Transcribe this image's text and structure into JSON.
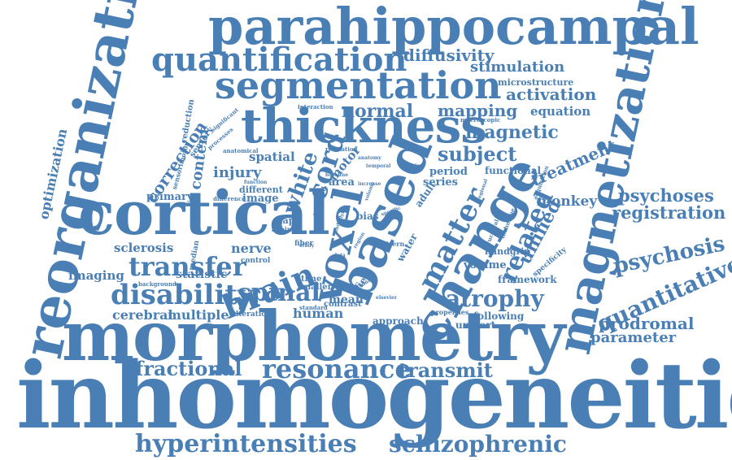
{
  "color": "#4a7fb5",
  "words": [
    {
      "key": "inhomogeneities",
      "text": "inhomogeneities"
    },
    {
      "key": "morphometry",
      "text": "morphometry"
    },
    {
      "key": "cortical",
      "text": "cortical"
    },
    {
      "key": "reorganization",
      "text": "reorganization"
    },
    {
      "key": "parahippocampal",
      "text": "parahippocampal"
    },
    {
      "key": "magnetization",
      "text": "magnetization"
    },
    {
      "key": "thickness",
      "text": "thickness"
    },
    {
      "key": "based",
      "text": "based"
    },
    {
      "key": "change",
      "text": "change"
    },
    {
      "key": "segmentation",
      "text": "segmentation"
    },
    {
      "key": "quantification",
      "text": "quantification"
    },
    {
      "key": "hyperintensities",
      "text": "hyperintensities"
    },
    {
      "key": "schizophrenic",
      "text": "schizophrenic"
    },
    {
      "key": "resonance",
      "text": "resonance"
    },
    {
      "key": "transmit",
      "text": "transmit"
    },
    {
      "key": "fractional",
      "text": "fractional"
    },
    {
      "key": "disability",
      "text": "disability"
    },
    {
      "key": "spinal",
      "text": "spinal"
    },
    {
      "key": "transfer",
      "text": "transfer"
    },
    {
      "key": "brain",
      "text": "brain"
    },
    {
      "key": "atrophy",
      "text": "atrophy"
    },
    {
      "key": "quantitative",
      "text": "quantitative"
    },
    {
      "key": "psychosis",
      "text": "psychosis"
    },
    {
      "key": "psychoses",
      "text": "psychoses"
    },
    {
      "key": "registration",
      "text": "registration"
    },
    {
      "key": "prodromal",
      "text": "prodromal"
    },
    {
      "key": "parameter",
      "text": "parameter"
    },
    {
      "key": "voxel",
      "text": "voxel"
    },
    {
      "key": "matter",
      "text": "matter"
    },
    {
      "key": "related",
      "text": "related"
    },
    {
      "key": "unified",
      "text": "unified"
    },
    {
      "key": "cord",
      "text": "cord"
    },
    {
      "key": "white",
      "text": "white"
    },
    {
      "key": "subject",
      "text": "subject"
    },
    {
      "key": "magnetic",
      "text": "magnetic"
    },
    {
      "key": "normal",
      "text": "normal"
    },
    {
      "key": "mapping",
      "text": "mapping"
    },
    {
      "key": "activation",
      "text": "activation"
    },
    {
      "key": "stimulation",
      "text": "stimulation"
    },
    {
      "key": "diffusivity",
      "text": "diffusivity"
    },
    {
      "key": "microstructure",
      "text": "microstructure"
    },
    {
      "key": "equation",
      "text": "equation"
    },
    {
      "key": "treatment",
      "text": "treatment"
    },
    {
      "key": "monkey",
      "text": "monkey"
    },
    {
      "key": "functional",
      "text": "functional"
    },
    {
      "key": "period",
      "text": "period"
    },
    {
      "key": "series",
      "text": "series"
    },
    {
      "key": "adult",
      "text": "adult"
    },
    {
      "key": "correction",
      "text": "correction"
    },
    {
      "key": "content",
      "text": "content"
    },
    {
      "key": "injury",
      "text": "injury"
    },
    {
      "key": "spatial",
      "text": "spatial"
    },
    {
      "key": "motor",
      "text": "motor"
    },
    {
      "key": "area",
      "text": "area"
    },
    {
      "key": "optimization",
      "text": "optimization"
    },
    {
      "key": "primary",
      "text": "primary"
    },
    {
      "key": "different",
      "text": "different"
    },
    {
      "key": "image",
      "text": "image"
    },
    {
      "key": "sclerosis",
      "text": "sclerosis"
    },
    {
      "key": "nerve",
      "text": "nerve"
    },
    {
      "key": "imaging",
      "text": "imaging"
    },
    {
      "key": "statistic",
      "text": "statistic"
    },
    {
      "key": "cerebral",
      "text": "cerebral"
    },
    {
      "key": "multiple",
      "text": "multiple"
    },
    {
      "key": "human",
      "text": "human"
    },
    {
      "key": "mean",
      "text": "mean"
    },
    {
      "key": "field",
      "text": "field"
    },
    {
      "key": "bias",
      "text": "bias"
    },
    {
      "key": "water",
      "text": "water"
    },
    {
      "key": "volume",
      "text": "volume"
    },
    {
      "key": "framework",
      "text": "framework"
    },
    {
      "key": "handgrip",
      "text": "handgrip"
    },
    {
      "key": "unicort",
      "text": "unicort"
    },
    {
      "key": "approach",
      "text": "approach"
    },
    {
      "key": "following",
      "text": "following"
    },
    {
      "key": "properties",
      "text": "properties"
    },
    {
      "key": "contrast",
      "text": "contrast"
    },
    {
      "key": "standard",
      "text": "standard"
    },
    {
      "key": "alteration",
      "text": "alteration"
    },
    {
      "key": "time",
      "text": "time"
    },
    {
      "key": "smaller",
      "text": "smaller"
    },
    {
      "key": "background",
      "text": "background"
    },
    {
      "key": "control",
      "text": "control"
    },
    {
      "key": "median",
      "text": "median"
    },
    {
      "key": "map",
      "text": "map"
    },
    {
      "key": "ageing",
      "text": "ageing"
    },
    {
      "key": "fiber",
      "text": "fiber"
    },
    {
      "key": "study",
      "text": "study"
    },
    {
      "key": "pattern",
      "text": "pattern"
    },
    {
      "key": "specificity",
      "text": "specificity"
    },
    {
      "key": "acquisition",
      "text": "acquisition"
    },
    {
      "key": "technique",
      "text": "technique"
    },
    {
      "key": "structural",
      "text": "structural"
    },
    {
      "key": "sensory",
      "text": "sensory"
    },
    {
      "key": "sensorimotor",
      "text": "sensorimotor"
    },
    {
      "key": "reduction",
      "text": "reduction"
    },
    {
      "key": "anatomical",
      "text": "anatomical"
    },
    {
      "key": "processes",
      "text": "processes"
    },
    {
      "key": "significant",
      "text": "significant"
    },
    {
      "key": "interaction",
      "text": "interaction"
    },
    {
      "key": "relaxation",
      "text": "relaxation"
    },
    {
      "key": "anatomy",
      "text": "anatomy"
    },
    {
      "key": "temporal",
      "text": "temporal"
    },
    {
      "key": "cervical",
      "text": "cervical"
    },
    {
      "key": "macroscopic",
      "text": "macroscopic"
    },
    {
      "key": "baseline",
      "text": "baseline"
    },
    {
      "key": "increase",
      "text": "increase"
    },
    {
      "key": "function",
      "text": "function"
    },
    {
      "key": "difference",
      "text": "difference"
    },
    {
      "key": "underlying",
      "text": "underlying"
    },
    {
      "key": "revealed",
      "text": "revealed"
    },
    {
      "key": "reduced",
      "text": "reduced"
    },
    {
      "key": "elsevier",
      "text": "elsevier"
    },
    {
      "key": "specific",
      "text": "specific"
    },
    {
      "key": "regional",
      "text": "regional"
    },
    {
      "key": "volume_small",
      "text": "volume"
    },
    {
      "key": "region",
      "text": "region"
    },
    {
      "key": "data",
      "text": "data"
    }
  ]
}
